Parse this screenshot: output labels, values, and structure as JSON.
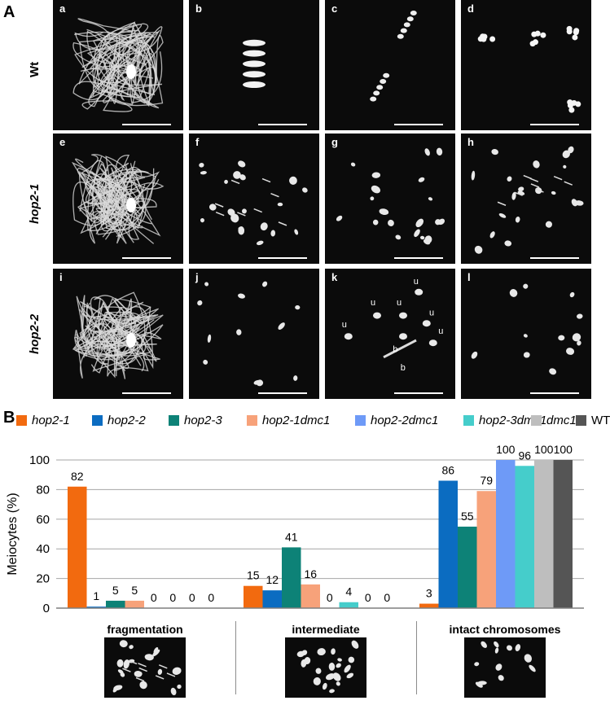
{
  "panel_a": {
    "label": "A",
    "rows": [
      {
        "label": "Wt",
        "italic": false,
        "images": [
          {
            "letter": "a",
            "kind": "tangle"
          },
          {
            "letter": "b",
            "kind": "metaphase"
          },
          {
            "letter": "c",
            "kind": "anaphase"
          },
          {
            "letter": "d",
            "kind": "tetrad"
          }
        ]
      },
      {
        "label": "hop2-1",
        "italic": true,
        "images": [
          {
            "letter": "e",
            "kind": "tangle"
          },
          {
            "letter": "f",
            "kind": "fragments"
          },
          {
            "letter": "g",
            "kind": "fragments2"
          },
          {
            "letter": "h",
            "kind": "fragments3"
          }
        ]
      },
      {
        "label": "hop2-2",
        "italic": true,
        "images": [
          {
            "letter": "i",
            "kind": "tangle"
          },
          {
            "letter": "j",
            "kind": "sparse"
          },
          {
            "letter": "k",
            "kind": "univalents"
          },
          {
            "letter": "l",
            "kind": "sparse2"
          }
        ]
      }
    ],
    "image_k_markers": [
      "u",
      "u",
      "u",
      "u",
      "u",
      "u",
      "b",
      "b"
    ]
  },
  "panel_b": {
    "label": "B",
    "legend": [
      {
        "name": "hop2-1",
        "color": "#F26A0F",
        "italic": true
      },
      {
        "name": "hop2-2",
        "color": "#0B6CC1",
        "italic": true
      },
      {
        "name": "hop2-3",
        "color": "#0D8277",
        "italic": true
      },
      {
        "name": "hop2-1dmc1",
        "color": "#F7A27A",
        "italic": true
      },
      {
        "name": "hop2-2dmc1",
        "color": "#6E9AF7",
        "italic": true
      },
      {
        "name": "hop2-3dmc1",
        "color": "#45CDCB",
        "italic": true
      },
      {
        "name": "dmc1",
        "color": "#BEBEBE",
        "italic": true
      },
      {
        "name": "WT",
        "color": "#555555",
        "italic": false
      }
    ],
    "chart_data": {
      "type": "bar",
      "categories": [
        "fragmentation",
        "intermediate",
        "intact chromosomes"
      ],
      "series": [
        {
          "name": "hop2-1",
          "values": [
            82,
            15,
            3
          ]
        },
        {
          "name": "hop2-2",
          "values": [
            1,
            12,
            86
          ]
        },
        {
          "name": "hop2-3",
          "values": [
            5,
            41,
            55
          ]
        },
        {
          "name": "hop2-1dmc1",
          "values": [
            5,
            16,
            79
          ]
        },
        {
          "name": "hop2-2dmc1",
          "values": [
            0,
            0,
            100
          ]
        },
        {
          "name": "hop2-3dmc1",
          "values": [
            0,
            4,
            96
          ]
        },
        {
          "name": "dmc1",
          "values": [
            0,
            0,
            100
          ]
        },
        {
          "name": "WT",
          "values": [
            0,
            0,
            100
          ]
        }
      ],
      "ylabel": "Meiocytes (%)",
      "ylim": [
        0,
        100
      ],
      "yticks": [
        0,
        20,
        40,
        60,
        80,
        100
      ],
      "grid": true
    }
  }
}
